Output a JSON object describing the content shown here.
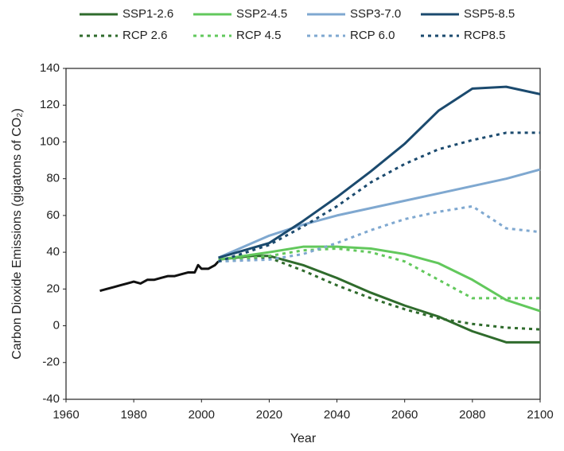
{
  "chart_data": {
    "type": "line",
    "x_label": "Year",
    "y_label": "Carbon Dioxide Emissions (gigatons of CO₂)",
    "xlim": [
      1960,
      2100
    ],
    "xticks": [
      1960,
      1980,
      2000,
      2020,
      2040,
      2060,
      2080,
      2100
    ],
    "ylim": [
      -40,
      140
    ],
    "yticks": [
      -40,
      -20,
      0,
      20,
      40,
      60,
      80,
      100,
      120,
      140
    ],
    "grid": false,
    "series": [
      {
        "color": "#111111",
        "dashed": false,
        "x": [
          1970,
          1972,
          1974,
          1976,
          1978,
          1980,
          1982,
          1984,
          1986,
          1988,
          1990,
          1992,
          1994,
          1996,
          1998,
          1999,
          2000,
          2002,
          2004,
          2005
        ],
        "values": [
          19,
          20,
          21,
          22,
          23,
          24,
          23,
          25,
          25,
          26,
          27,
          27,
          28,
          29,
          29,
          33,
          31,
          31,
          33,
          35
        ]
      },
      {
        "name": "SSP1-2.6",
        "color": "#2f6b2c",
        "dashed": false,
        "x": [
          2005,
          2015,
          2020,
          2030,
          2040,
          2050,
          2060,
          2070,
          2080,
          2090,
          2100
        ],
        "values": [
          36,
          38,
          38,
          33,
          26,
          18,
          11,
          5,
          -3,
          -9,
          -9
        ]
      },
      {
        "name": "SSP2-4.5",
        "color": "#62c85c",
        "dashed": false,
        "x": [
          2005,
          2020,
          2030,
          2040,
          2050,
          2060,
          2070,
          2080,
          2090,
          2100
        ],
        "values": [
          36,
          40,
          43,
          43,
          42,
          39,
          34,
          25,
          14,
          8
        ]
      },
      {
        "name": "SSP3-7.0",
        "color": "#7fa8d0",
        "dashed": false,
        "x": [
          2005,
          2020,
          2030,
          2040,
          2050,
          2060,
          2070,
          2080,
          2090,
          2100
        ],
        "values": [
          37,
          49,
          55,
          60,
          64,
          68,
          72,
          76,
          80,
          85
        ]
      },
      {
        "name": "SSP5-8.5",
        "color": "#1b4a6e",
        "dashed": false,
        "x": [
          2005,
          2020,
          2030,
          2040,
          2050,
          2060,
          2070,
          2080,
          2090,
          2100
        ],
        "values": [
          37,
          45,
          57,
          70,
          84,
          99,
          117,
          129,
          130,
          126
        ]
      },
      {
        "name": "RCP 2.6",
        "color": "#2f6b2c",
        "dashed": true,
        "x": [
          2005,
          2020,
          2030,
          2040,
          2050,
          2060,
          2070,
          2080,
          2090,
          2100
        ],
        "values": [
          35,
          37,
          30,
          22,
          15,
          9,
          4,
          1,
          -1,
          -2
        ]
      },
      {
        "name": "RCP 4.5",
        "color": "#62c85c",
        "dashed": true,
        "x": [
          2005,
          2020,
          2030,
          2040,
          2050,
          2060,
          2070,
          2080,
          2090,
          2100
        ],
        "values": [
          35,
          38,
          41,
          42,
          40,
          35,
          25,
          15,
          15,
          15
        ]
      },
      {
        "name": "RCP 6.0",
        "color": "#7fa8d0",
        "dashed": true,
        "x": [
          2005,
          2020,
          2030,
          2040,
          2050,
          2060,
          2070,
          2080,
          2090,
          2100
        ],
        "values": [
          35,
          36,
          39,
          45,
          52,
          58,
          62,
          65,
          53,
          51
        ]
      },
      {
        "name": "RCP8.5",
        "color": "#1b4a6e",
        "dashed": true,
        "x": [
          2005,
          2020,
          2030,
          2040,
          2050,
          2060,
          2070,
          2080,
          2090,
          2100
        ],
        "values": [
          35,
          44,
          54,
          65,
          78,
          88,
          96,
          101,
          105,
          105
        ]
      }
    ]
  }
}
